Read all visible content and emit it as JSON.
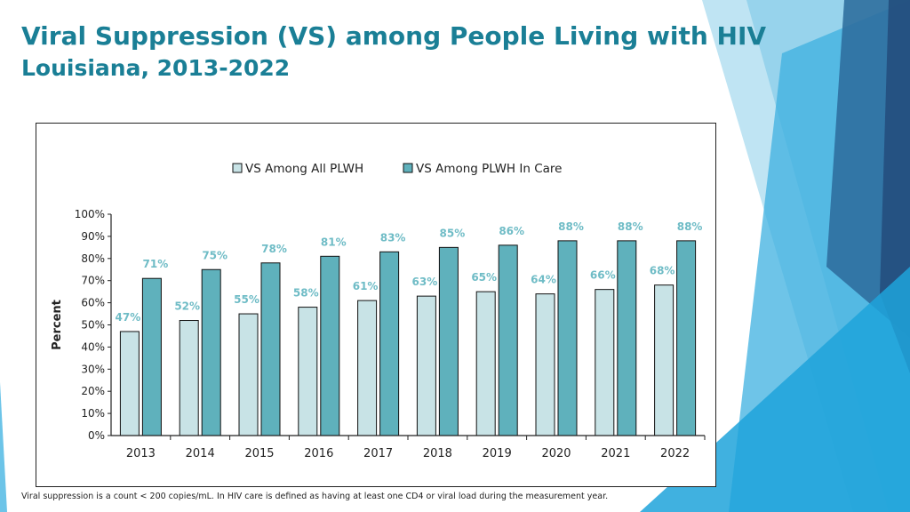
{
  "slide": {
    "title": "Viral Suppression (VS) among People Living with HIV",
    "subtitle": "Louisiana, 2013-2022",
    "footnote": "Viral suppression is a count < 200 copies/mL.  In HIV care is defined as having at least one CD4 or viral load during the measurement year."
  },
  "colors": {
    "title": "#1a7f96",
    "series_all": "#c8e3e6",
    "series_care": "#5fb1bc",
    "label_text": "#6fbcc6"
  },
  "chart_data": {
    "type": "bar",
    "title": "",
    "xlabel": "",
    "ylabel": "Percent",
    "ylim": [
      0,
      100
    ],
    "yticks": [
      0,
      10,
      20,
      30,
      40,
      50,
      60,
      70,
      80,
      90,
      100
    ],
    "tick_suffix": "%",
    "grid": false,
    "legend_position": "top-center",
    "categories": [
      "2013",
      "2014",
      "2015",
      "2016",
      "2017",
      "2018",
      "2019",
      "2020",
      "2021",
      "2022"
    ],
    "series": [
      {
        "name": "VS Among All PLWH",
        "values": [
          47,
          52,
          55,
          58,
          61,
          63,
          65,
          64,
          66,
          68
        ],
        "labels": [
          "47%",
          "52%",
          "55%",
          "58%",
          "61%",
          "63%",
          "65%",
          "64%",
          "66%",
          "68%"
        ]
      },
      {
        "name": "VS Among PLWH In Care",
        "values": [
          71,
          75,
          78,
          81,
          83,
          85,
          86,
          88,
          88,
          88
        ],
        "labels": [
          "71%",
          "75%",
          "78%",
          "81%",
          "83%",
          "85%",
          "86%",
          "88%",
          "88%",
          "88%"
        ]
      }
    ]
  }
}
